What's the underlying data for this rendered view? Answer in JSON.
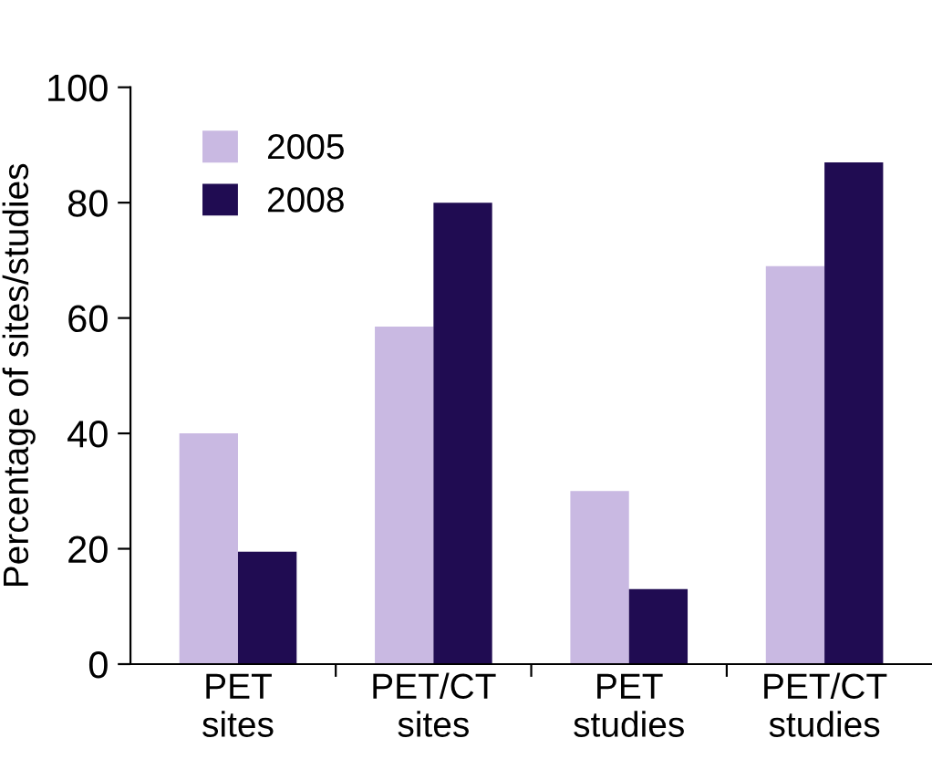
{
  "chart_data": {
    "type": "bar",
    "ylabel": "Percentage of sites/studies",
    "categories": [
      "PET\nsites",
      "PET/CT\nsites",
      "PET\nstudies",
      "PET/CT\nstudies"
    ],
    "series": [
      {
        "name": "2005",
        "color": "#c9b9e2",
        "values": [
          40,
          58.5,
          30,
          69
        ]
      },
      {
        "name": "2008",
        "color": "#200c52",
        "values": [
          19.5,
          80,
          13,
          87
        ]
      }
    ],
    "ylim": [
      0,
      100
    ],
    "yticks": [
      0,
      20,
      40,
      60,
      80,
      100
    ],
    "legend": "top left",
    "grid": false
  }
}
